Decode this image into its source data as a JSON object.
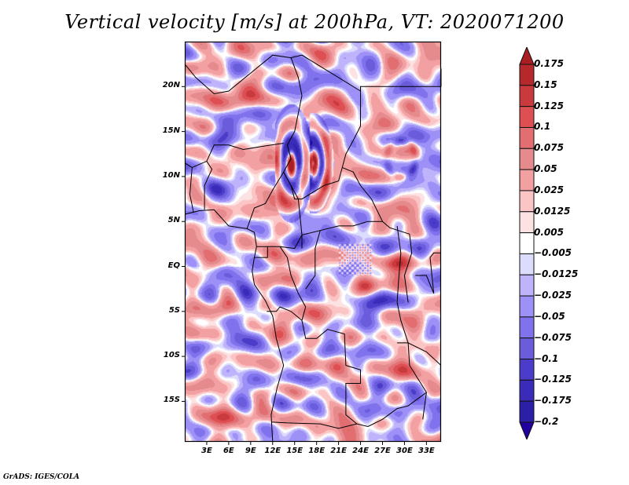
{
  "chart_data": {
    "type": "heatmap",
    "title": "Vertical velocity [m/s] at 200hPa, VT: 2020071200",
    "variable": "Vertical velocity",
    "units": "m/s",
    "level": "200hPa",
    "valid_time": "2020071200",
    "xlabel": "",
    "ylabel": "",
    "xlim": [
      0,
      35
    ],
    "ylim": [
      -19.5,
      25
    ],
    "x_ticks": [
      {
        "value": 3,
        "label": "3E"
      },
      {
        "value": 6,
        "label": "6E"
      },
      {
        "value": 9,
        "label": "9E"
      },
      {
        "value": 12,
        "label": "12E"
      },
      {
        "value": 15,
        "label": "15E"
      },
      {
        "value": 18,
        "label": "18E"
      },
      {
        "value": 21,
        "label": "21E"
      },
      {
        "value": 24,
        "label": "24E"
      },
      {
        "value": 27,
        "label": "27E"
      },
      {
        "value": 30,
        "label": "30E"
      },
      {
        "value": 33,
        "label": "33E"
      }
    ],
    "y_ticks": [
      {
        "value": 20,
        "label": "20N"
      },
      {
        "value": 15,
        "label": "15N"
      },
      {
        "value": 10,
        "label": "10N"
      },
      {
        "value": 5,
        "label": "5N"
      },
      {
        "value": 0,
        "label": "EQ"
      },
      {
        "value": -5,
        "label": "5S"
      },
      {
        "value": -10,
        "label": "10S"
      },
      {
        "value": -15,
        "label": "15S"
      }
    ],
    "colorbar": {
      "levels": [
        0.175,
        0.15,
        0.125,
        0.1,
        0.075,
        0.05,
        0.025,
        0.0125,
        0.005,
        -0.005,
        -0.0125,
        -0.025,
        -0.05,
        -0.075,
        -0.1,
        -0.125,
        -0.175,
        -0.2
      ],
      "labels": [
        "0.175",
        "0.15",
        "0.125",
        "0.1",
        "0.075",
        "0.05",
        "0.025",
        "0.0125",
        "0.005",
        "−0.005",
        "−0.0125",
        "−0.025",
        "−0.05",
        "−0.075",
        "−0.1",
        "−0.125",
        "−0.175",
        "−0.2"
      ],
      "colors_top_to_bottom": [
        "#a81e22",
        "#b5282c",
        "#c83a3e",
        "#dd4f52",
        "#e36e71",
        "#e58a8d",
        "#f3a0a2",
        "#fbc4c5",
        "#fde2e3",
        "#ffffff",
        "#dcdcfd",
        "#bfb4fb",
        "#9d90f6",
        "#7f72ec",
        "#6a5cda",
        "#4b3dc9",
        "#3a2bb8",
        "#2b1fa6",
        "#22009e"
      ],
      "extend": "both",
      "placement": "right"
    },
    "features": [
      "Strong paired upward/downward velocity arcs near 15-20E, 10-14N",
      "Ring-shaped disturbance near 29-31E, 11-13N",
      "Convective speckle over central Africa near 22-25E, 0-2N",
      "Country boundaries and coastlines overlaid in black"
    ]
  },
  "footer": "GrADS: IGES/COLA"
}
